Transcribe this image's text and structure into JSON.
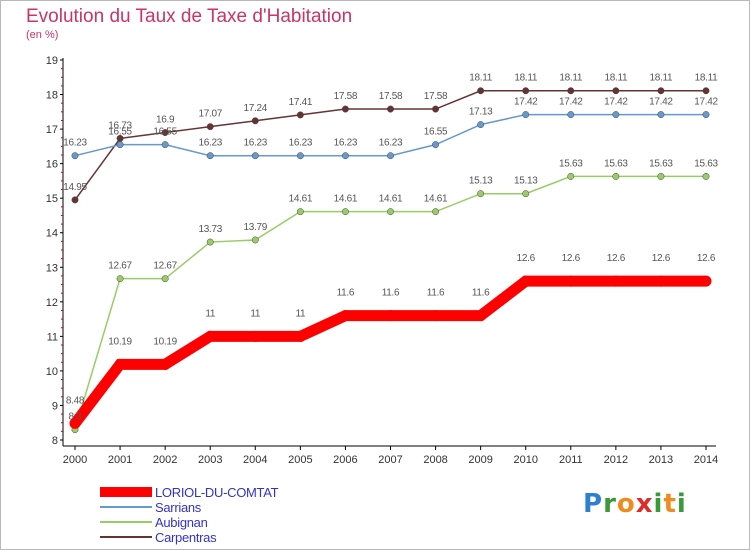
{
  "header": {
    "title": "Evolution du Taux de Taxe d'Habitation",
    "unit": "(en %)"
  },
  "brand": {
    "logo_letters": [
      "P",
      "r",
      "o",
      "x",
      "i",
      "t",
      "i"
    ],
    "logo_colors": [
      "#2f7fd0",
      "#3a9a3a",
      "#f08c1e",
      "#e02a2a",
      "#3a9a3a",
      "#f08c1e",
      "#3a9a3a"
    ]
  },
  "chart_data": {
    "type": "line",
    "title": "Evolution du Taux de Taxe d'Habitation",
    "ylabel": "(en %)",
    "xlabel": "",
    "x": [
      2000,
      2001,
      2002,
      2003,
      2004,
      2005,
      2006,
      2007,
      2008,
      2009,
      2010,
      2011,
      2012,
      2013,
      2014
    ],
    "ylim": [
      8,
      19
    ],
    "yticks": [
      8,
      9,
      10,
      11,
      12,
      13,
      14,
      15,
      16,
      17,
      18,
      19
    ],
    "grid": "none",
    "legend_position": "bottom-left",
    "series": [
      {
        "name": "LORIOL-DU-COMTAT",
        "color": "#ff0000",
        "emphasis": "thick",
        "values": [
          8.48,
          10.19,
          10.19,
          11,
          11,
          11,
          11.6,
          11.6,
          11.6,
          11.6,
          12.6,
          12.6,
          12.6,
          12.6,
          12.6
        ],
        "labels": [
          "8.48",
          "10.19",
          "10.19",
          "11",
          "11",
          "11",
          "11.6",
          "11.6",
          "11.6",
          "11.6",
          "12.6",
          "12.6",
          "12.6",
          "12.6",
          "12.6"
        ]
      },
      {
        "name": "Sarrians",
        "color": "#6699cc",
        "values": [
          16.23,
          16.55,
          16.55,
          16.23,
          16.23,
          16.23,
          16.23,
          16.23,
          16.55,
          17.13,
          17.42,
          17.42,
          17.42,
          17.42,
          17.42
        ],
        "labels": [
          "16.23",
          "16.55",
          "16.55",
          "16.23",
          "16.23",
          "16.23",
          "16.23",
          "16.23",
          "16.55",
          "17.13",
          "17.42",
          "17.42",
          "17.42",
          "17.42",
          "17.42"
        ]
      },
      {
        "name": "Aubignan",
        "color": "#99cc66",
        "values": [
          8.3,
          12.67,
          12.67,
          13.73,
          13.79,
          14.61,
          14.61,
          14.61,
          14.61,
          15.13,
          15.13,
          15.63,
          15.63,
          15.63,
          15.63
        ],
        "labels": [
          "8.3",
          "12.67",
          "12.67",
          "13.73",
          "13.79",
          "14.61",
          "14.61",
          "14.61",
          "14.61",
          "15.13",
          "15.13",
          "15.63",
          "15.63",
          "15.63",
          "15.63"
        ]
      },
      {
        "name": "Carpentras",
        "color": "#663333",
        "values": [
          14.95,
          16.73,
          16.9,
          17.07,
          17.24,
          17.41,
          17.58,
          17.58,
          17.58,
          18.11,
          18.11,
          18.11,
          18.11,
          18.11,
          18.11
        ],
        "labels": [
          "14.95",
          "16.73",
          "16.9",
          "17.07",
          "17.24",
          "17.41",
          "17.58",
          "17.58",
          "17.58",
          "18.11",
          "18.11",
          "18.11",
          "18.11",
          "18.11",
          "18.11"
        ]
      }
    ]
  }
}
